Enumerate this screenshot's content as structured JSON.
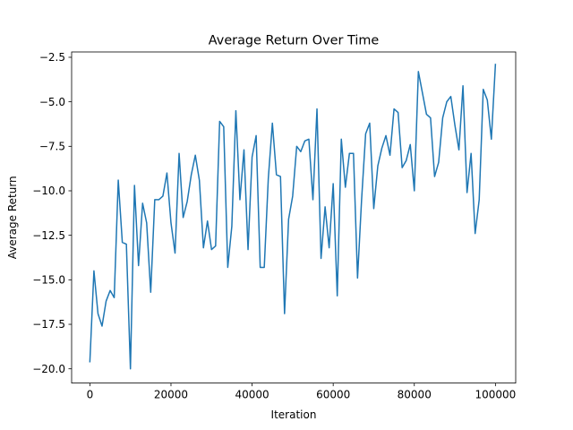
{
  "chart_data": {
    "type": "line",
    "title": "Average Return Over Time",
    "xlabel": "Iteration",
    "ylabel": "Average Return",
    "xlim": [
      -4500,
      105000
    ],
    "ylim": [
      -20.8,
      -2.2
    ],
    "xticks": [
      0,
      20000,
      40000,
      60000,
      80000,
      100000
    ],
    "xtick_labels": [
      "0",
      "20000",
      "40000",
      "60000",
      "80000",
      "100000"
    ],
    "yticks": [
      -20.0,
      -17.5,
      -15.0,
      -12.5,
      -10.0,
      -7.5,
      -5.0,
      -2.5
    ],
    "ytick_labels": [
      "−20.0",
      "−17.5",
      "−15.0",
      "−12.5",
      "−10.0",
      "−7.5",
      "−5.0",
      "−2.5"
    ],
    "grid": false,
    "series": [
      {
        "color": "#1f77b4",
        "x": [
          0,
          1000,
          2000,
          3000,
          4000,
          5000,
          6000,
          7000,
          8000,
          9000,
          10000,
          11000,
          12000,
          13000,
          14000,
          15000,
          16000,
          17000,
          18000,
          19000,
          20000,
          21000,
          22000,
          23000,
          24000,
          25000,
          26000,
          27000,
          28000,
          29000,
          30000,
          31000,
          32000,
          33000,
          34000,
          35000,
          36000,
          37000,
          38000,
          39000,
          40000,
          41000,
          42000,
          43000,
          44000,
          45000,
          46000,
          47000,
          48000,
          49000,
          50000,
          51000,
          52000,
          53000,
          54000,
          55000,
          56000,
          57000,
          58000,
          59000,
          60000,
          61000,
          62000,
          63000,
          64000,
          65000,
          66000,
          67000,
          68000,
          69000,
          70000,
          71000,
          72000,
          73000,
          74000,
          75000,
          76000,
          77000,
          78000,
          79000,
          80000,
          81000,
          82000,
          83000,
          84000,
          85000,
          86000,
          87000,
          88000,
          89000,
          90000,
          91000,
          92000,
          93000,
          94000,
          95000,
          96000,
          97000,
          98000,
          99000,
          100000
        ],
        "y": [
          -19.6,
          -14.5,
          -16.9,
          -17.6,
          -16.2,
          -15.6,
          -16.0,
          -9.4,
          -12.9,
          -13.0,
          -20.0,
          -9.7,
          -14.2,
          -10.7,
          -11.8,
          -15.7,
          -10.5,
          -10.5,
          -10.3,
          -9.0,
          -11.8,
          -13.5,
          -7.9,
          -11.5,
          -10.6,
          -9.1,
          -8.0,
          -9.4,
          -13.2,
          -11.7,
          -13.3,
          -13.1,
          -6.1,
          -6.4,
          -14.3,
          -12.0,
          -5.5,
          -10.5,
          -7.7,
          -13.3,
          -8.1,
          -6.9,
          -14.3,
          -14.3,
          -9.3,
          -6.2,
          -9.1,
          -9.2,
          -16.9,
          -11.6,
          -10.3,
          -7.5,
          -7.8,
          -7.2,
          -7.1,
          -10.5,
          -5.4,
          -13.8,
          -10.9,
          -13.2,
          -9.6,
          -15.9,
          -7.1,
          -9.8,
          -7.9,
          -7.9,
          -14.9,
          -10.5,
          -6.8,
          -6.2,
          -11.0,
          -8.6,
          -7.6,
          -6.9,
          -8.0,
          -5.4,
          -5.6,
          -8.7,
          -8.3,
          -7.4,
          -10.0,
          -3.3,
          -4.5,
          -5.7,
          -5.9,
          -9.2,
          -8.4,
          -5.9,
          -5.0,
          -4.7,
          -6.3,
          -7.7,
          -4.1,
          -10.1,
          -7.9,
          -12.4,
          -10.5,
          -4.3,
          -4.9,
          -7.1,
          -2.9
        ]
      }
    ]
  }
}
